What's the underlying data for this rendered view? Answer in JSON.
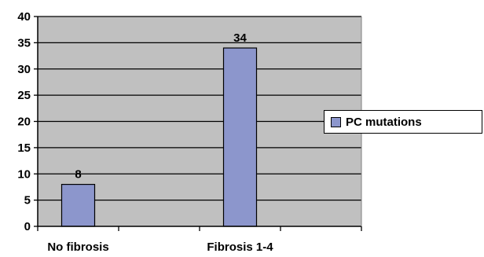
{
  "chart_data": {
    "type": "bar",
    "categories": [
      "No fibrosis",
      "Fibrosis 1-4"
    ],
    "series": [
      {
        "name": "PC mutations",
        "values": [
          8,
          34
        ]
      }
    ],
    "data_labels": [
      "8",
      "34"
    ],
    "ylim": [
      0,
      40
    ],
    "yticks": [
      0,
      5,
      10,
      15,
      20,
      25,
      30,
      35,
      40
    ],
    "xlabel": "",
    "ylabel": "",
    "grid": true,
    "legend_position": "right",
    "colors": {
      "bar": "#8c96cc",
      "plot_background": "#c0c0c0",
      "gridline": "#000000"
    }
  },
  "legend": {
    "label": "PC mutations"
  }
}
